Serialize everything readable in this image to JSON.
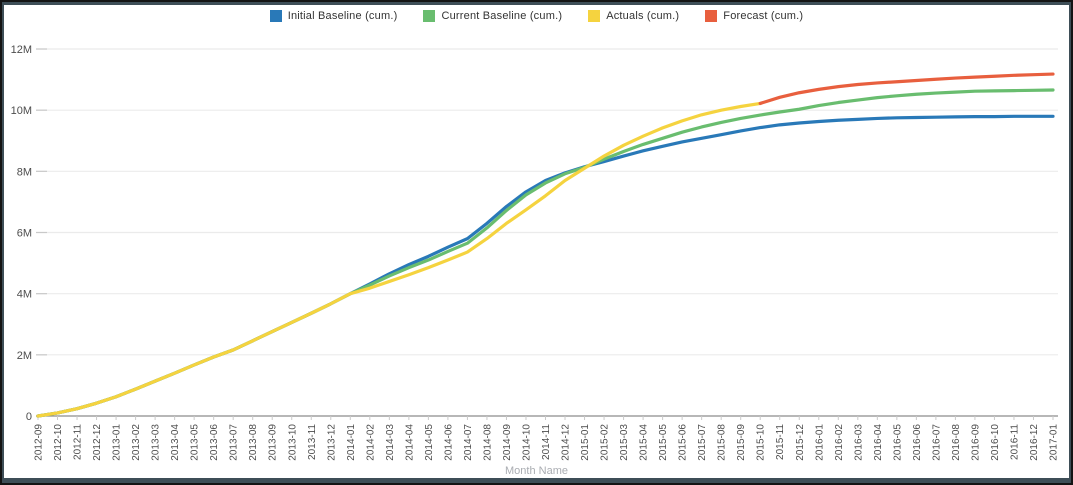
{
  "window": {
    "frame_color": "#3e4e57",
    "border_color": "#141414",
    "background": "#ffffff"
  },
  "legend": {
    "position": "top-center"
  },
  "axis_titles": {
    "x": "Month Name"
  },
  "colors": {
    "grid_line": "#ebebeb",
    "axis_line": "#8c8c8c",
    "tick_mark": "#c9c9c9",
    "tick_label": "#4d4d4d",
    "x_axis_title": "#aaadb2",
    "legend_text": "#333333"
  },
  "chart_data": {
    "type": "line",
    "title": "",
    "xlabel": "Month Name",
    "ylabel": "",
    "unit": "M (millions, cumulative)",
    "ylim_m": [
      0,
      12
    ],
    "ytick_labels": [
      "0",
      "2M",
      "4M",
      "6M",
      "8M",
      "10M",
      "12M"
    ],
    "ytick_values_m": [
      0,
      2,
      4,
      6,
      8,
      10,
      12
    ],
    "grid": true,
    "legend_position": "top",
    "categories": [
      "2012-09",
      "2012-10",
      "2012-11",
      "2012-12",
      "2013-01",
      "2013-02",
      "2013-03",
      "2013-04",
      "2013-05",
      "2013-06",
      "2013-07",
      "2013-08",
      "2013-09",
      "2013-10",
      "2013-11",
      "2013-12",
      "2014-01",
      "2014-02",
      "2014-03",
      "2014-04",
      "2014-05",
      "2014-06",
      "2014-07",
      "2014-08",
      "2014-09",
      "2014-10",
      "2014-11",
      "2014-12",
      "2015-01",
      "2015-02",
      "2015-03",
      "2015-04",
      "2015-05",
      "2015-06",
      "2015-07",
      "2015-08",
      "2015-09",
      "2015-10",
      "2015-11",
      "2015-12",
      "2016-01",
      "2016-02",
      "2016-03",
      "2016-04",
      "2016-05",
      "2016-06",
      "2016-07",
      "2016-08",
      "2016-09",
      "2016-10",
      "2016-11",
      "2016-12",
      "2017-01"
    ],
    "series": [
      {
        "name": "Initial Baseline (cum.)",
        "color": "#2979b8",
        "values": [
          0.0,
          0.1,
          0.24,
          0.42,
          0.63,
          0.88,
          1.14,
          1.4,
          1.67,
          1.93,
          2.16,
          2.46,
          2.76,
          3.06,
          3.36,
          3.67,
          4.0,
          4.32,
          4.65,
          4.95,
          5.22,
          5.52,
          5.8,
          6.3,
          6.85,
          7.33,
          7.7,
          7.95,
          8.15,
          8.32,
          8.5,
          8.67,
          8.82,
          8.96,
          9.08,
          9.2,
          9.32,
          9.43,
          9.52,
          9.58,
          9.63,
          9.67,
          9.7,
          9.73,
          9.75,
          9.76,
          9.77,
          9.78,
          9.79,
          9.79,
          9.8,
          9.8,
          9.8
        ]
      },
      {
        "name": "Current Baseline (cum.)",
        "color": "#69bd6f",
        "values": [
          0.0,
          0.1,
          0.24,
          0.42,
          0.63,
          0.88,
          1.14,
          1.4,
          1.67,
          1.93,
          2.16,
          2.46,
          2.76,
          3.06,
          3.36,
          3.67,
          4.0,
          4.28,
          4.58,
          4.85,
          5.1,
          5.38,
          5.65,
          6.15,
          6.72,
          7.23,
          7.62,
          7.92,
          8.13,
          8.4,
          8.65,
          8.88,
          9.08,
          9.28,
          9.45,
          9.6,
          9.73,
          9.84,
          9.94,
          10.03,
          10.15,
          10.25,
          10.33,
          10.41,
          10.47,
          10.52,
          10.56,
          10.59,
          10.62,
          10.63,
          10.64,
          10.65,
          10.66
        ]
      },
      {
        "name": "Actuals (cum.)",
        "color": "#f5d33f",
        "values": [
          0.0,
          0.1,
          0.24,
          0.42,
          0.63,
          0.88,
          1.14,
          1.4,
          1.67,
          1.93,
          2.16,
          2.46,
          2.76,
          3.06,
          3.36,
          3.67,
          4.0,
          4.18,
          4.4,
          4.62,
          4.85,
          5.1,
          5.36,
          5.8,
          6.3,
          6.74,
          7.2,
          7.7,
          8.1,
          8.5,
          8.85,
          9.15,
          9.42,
          9.65,
          9.85,
          10.0,
          10.12,
          10.22,
          null,
          null,
          null,
          null,
          null,
          null,
          null,
          null,
          null,
          null,
          null,
          null,
          null,
          null,
          null
        ]
      },
      {
        "name": "Forecast (cum.)",
        "color": "#e85f3e",
        "values": [
          null,
          null,
          null,
          null,
          null,
          null,
          null,
          null,
          null,
          null,
          null,
          null,
          null,
          null,
          null,
          null,
          null,
          null,
          null,
          null,
          null,
          null,
          null,
          null,
          null,
          null,
          null,
          null,
          null,
          null,
          null,
          null,
          null,
          null,
          null,
          null,
          null,
          10.22,
          10.42,
          10.57,
          10.68,
          10.77,
          10.84,
          10.89,
          10.93,
          10.97,
          11.01,
          11.05,
          11.08,
          11.11,
          11.14,
          11.16,
          11.18
        ]
      }
    ]
  }
}
